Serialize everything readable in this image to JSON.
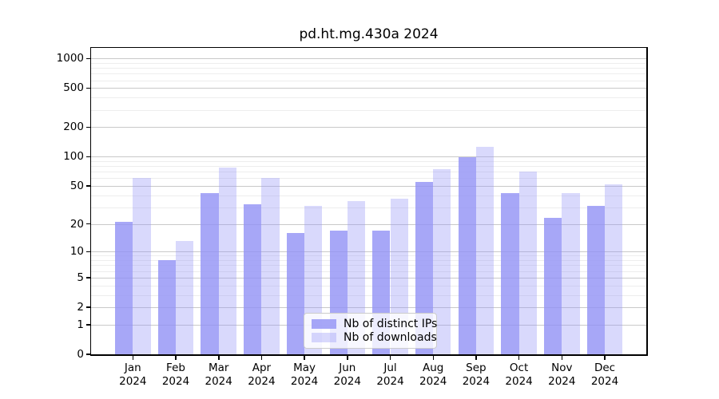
{
  "chart_data": {
    "type": "bar",
    "title": "pd.ht.mg.430a 2024",
    "categories": [
      "Jan 2024",
      "Feb 2024",
      "Mar 2024",
      "Apr 2024",
      "May 2024",
      "Jun 2024",
      "Jul 2024",
      "Aug 2024",
      "Sep 2024",
      "Oct 2024",
      "Nov 2024",
      "Dec 2024"
    ],
    "series": [
      {
        "name": "Nb of distinct IPs",
        "color": "#9191f5",
        "alpha": 0.8,
        "values": [
          21,
          8,
          42,
          32,
          16,
          17,
          17,
          55,
          99,
          42,
          23,
          31
        ]
      },
      {
        "name": "Nb of downloads",
        "color": "#9191f5",
        "alpha": 0.35,
        "values": [
          60,
          13,
          78,
          61,
          31,
          35,
          37,
          74,
          126,
          70,
          42,
          52
        ]
      }
    ],
    "yscale": "log1p",
    "ylim": [
      0,
      1280
    ],
    "yticks": [
      0,
      1,
      2,
      5,
      10,
      20,
      50,
      100,
      200,
      500,
      1000
    ],
    "minor_gridticks": [
      3,
      4,
      6,
      7,
      8,
      9,
      30,
      40,
      60,
      70,
      80,
      90,
      300,
      400,
      600,
      700,
      800,
      900
    ],
    "grid": true,
    "major_grid_color": "#c9c9c9",
    "minor_grid_color": "#ededed",
    "legend_position": "lower center"
  }
}
